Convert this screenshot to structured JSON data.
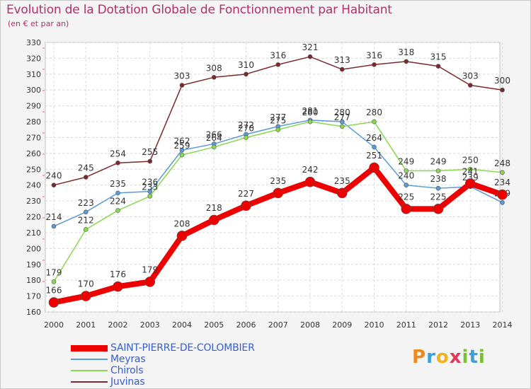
{
  "header": {
    "title": "Evolution de la Dotation Globale de Fonctionnement par Habitant",
    "subtitle": "(en € et par an)"
  },
  "logo": {
    "text": "Proxiti",
    "parts": [
      "P",
      "r",
      "o",
      "x",
      "i",
      "t",
      "i"
    ]
  },
  "chart_data": {
    "type": "line",
    "title": "Evolution de la Dotation Globale de Fonctionnement par Habitant",
    "subtitle": "(en € et par an)",
    "xlabel": "",
    "ylabel": "",
    "ylim": [
      160,
      330
    ],
    "yticks": [
      160,
      170,
      180,
      190,
      200,
      210,
      220,
      230,
      240,
      250,
      260,
      270,
      280,
      290,
      300,
      310,
      320,
      330
    ],
    "categories": [
      "2000",
      "2001",
      "2002",
      "2003",
      "2004",
      "2005",
      "2006",
      "2007",
      "2008",
      "2009",
      "2010",
      "2011",
      "2012",
      "2013",
      "2014"
    ],
    "legend_position": "bottom-left",
    "series": [
      {
        "name": "Juvinas",
        "color": "#7a2a2a",
        "values": [
          240,
          245,
          254,
          255,
          303,
          308,
          310,
          316,
          321,
          313,
          316,
          318,
          315,
          303,
          300
        ]
      },
      {
        "name": "Meyras",
        "color": "#5a9ad8",
        "values": [
          214,
          223,
          235,
          236,
          262,
          266,
          272,
          277,
          281,
          280,
          264,
          240,
          238,
          239,
          229
        ]
      },
      {
        "name": "Chirols",
        "color": "#8ad850",
        "values": [
          179,
          212,
          224,
          233,
          259,
          264,
          270,
          275,
          280,
          277,
          280,
          249,
          249,
          250,
          248
        ]
      },
      {
        "name": "SAINT-PIERRE-DE-COLOMBIER",
        "color": "#ee0000",
        "values": [
          166,
          170,
          176,
          179,
          208,
          218,
          227,
          235,
          242,
          235,
          251,
          225,
          225,
          241,
          234
        ]
      }
    ],
    "legend_order": [
      "SAINT-PIERRE-DE-COLOMBIER",
      "Meyras",
      "Chirols",
      "Juvinas"
    ]
  }
}
